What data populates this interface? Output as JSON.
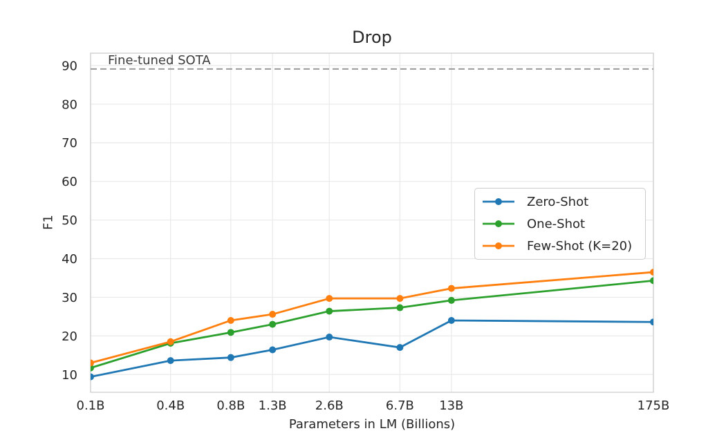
{
  "chart_data": {
    "type": "line",
    "title": "Drop",
    "xlabel": "Parameters in LM (Billions)",
    "ylabel": "F1",
    "x_scale": "log",
    "categories": [
      "0.1B",
      "0.4B",
      "0.8B",
      "1.3B",
      "2.6B",
      "6.7B",
      "13B",
      "175B"
    ],
    "x_billions": [
      0.125,
      0.35,
      0.76,
      1.3,
      2.7,
      6.7,
      13,
      175
    ],
    "xlim_billions": [
      0.125,
      175
    ],
    "y_ticks": [
      10,
      20,
      30,
      40,
      50,
      60,
      70,
      80,
      90
    ],
    "ylim": [
      5.4,
      93.2
    ],
    "grid": true,
    "series": [
      {
        "name": "Zero-Shot",
        "color": "#1f77b4",
        "values": [
          9.4,
          13.6,
          14.4,
          16.4,
          19.7,
          17.0,
          24.0,
          23.6
        ]
      },
      {
        "name": "One-Shot",
        "color": "#2ca02c",
        "values": [
          11.7,
          18.1,
          20.9,
          23.0,
          26.4,
          27.3,
          29.2,
          34.3
        ]
      },
      {
        "name": "Few-Shot (K=20)",
        "color": "#ff7f0e",
        "values": [
          13.0,
          18.5,
          24.0,
          25.6,
          29.7,
          29.7,
          32.3,
          36.5
        ]
      }
    ],
    "reference_line": {
      "label": "Fine-tuned SOTA",
      "value": 89.1,
      "style": "dashed",
      "color": "#999999"
    },
    "legend": {
      "position": "center-right",
      "labels": [
        "Zero-Shot",
        "One-Shot",
        "Few-Shot (K=20)"
      ]
    }
  },
  "style": {
    "background": "#ffffff",
    "grid_color": "#e9e9e9",
    "spine_color": "#cccccc",
    "text_color": "#262626",
    "tick_label_color": "#262626"
  }
}
